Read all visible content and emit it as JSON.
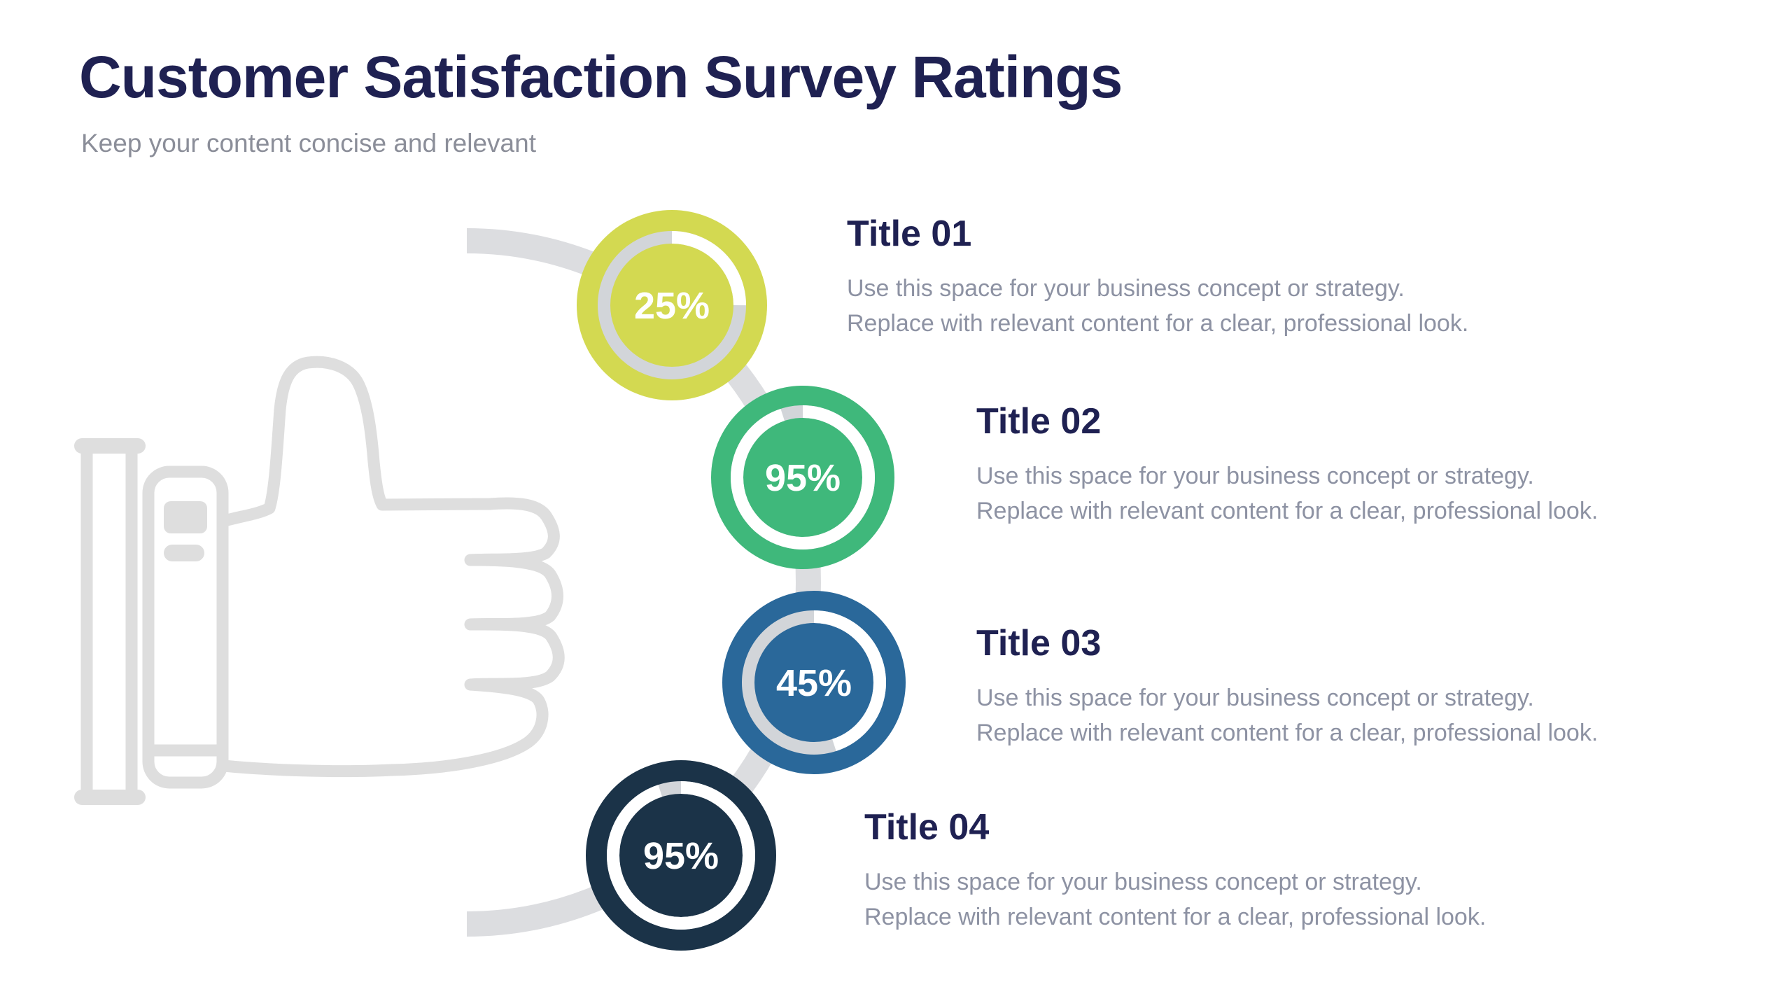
{
  "page": {
    "background": "#ffffff"
  },
  "header": {
    "title": "Customer Satisfaction Survey Ratings",
    "subtitle": "Keep your content concise and relevant",
    "title_color": "#1f2152",
    "subtitle_color": "#8b8e99"
  },
  "decor": {
    "thumbs_up_icon": "thumbs-up-outline",
    "icon_color": "#dedede",
    "connector_arc_color": "#dcdde0",
    "ring_track_color": "#d2d5d9",
    "ring_progress_color": "#ffffff",
    "percent_text_color": "#ffffff"
  },
  "chart_data": {
    "type": "radial-progress-infographic",
    "categories": [
      "Title 01",
      "Title 02",
      "Title 03",
      "Title 04"
    ],
    "values": [
      25,
      95,
      45,
      95
    ],
    "title": "Customer Satisfaction Survey Ratings",
    "unit": "%"
  },
  "items": [
    {
      "percent": 25,
      "percent_label": "25%",
      "title": "Title 01",
      "description": "Use this space for your business concept or strategy.\nReplace with relevant content for a clear, professional look.",
      "color": "#d3d951"
    },
    {
      "percent": 95,
      "percent_label": "95%",
      "title": "Title 02",
      "description": "Use this space for your business concept or strategy.\nReplace with relevant content for a clear, professional look.",
      "color": "#3fb87b"
    },
    {
      "percent": 45,
      "percent_label": "45%",
      "title": "Title 03",
      "description": "Use this space for your business concept or strategy.\nReplace with relevant content for a clear, professional look.",
      "color": "#2a689a"
    },
    {
      "percent": 95,
      "percent_label": "95%",
      "title": "Title 04",
      "description": "Use this space for your business concept or strategy.\nReplace with relevant content for a clear, professional look.",
      "color": "#1b3348"
    }
  ]
}
